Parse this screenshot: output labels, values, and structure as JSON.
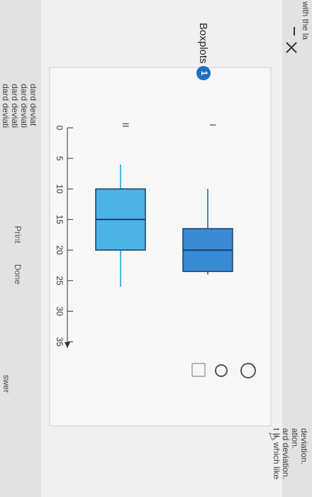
{
  "background_text": {
    "top": "with the la",
    "left": [
      "dard deviat",
      "dard deviati",
      "dard deviati",
      "dard deviati"
    ],
    "answer": "swer",
    "right": [
      "deviation.",
      "ation.",
      "ard deviation.",
      "t II, which like"
    ]
  },
  "dialog": {
    "step": "1",
    "title": "Boxplots",
    "buttons": [
      "Print",
      "Done"
    ]
  },
  "chart_data": {
    "type": "boxplot",
    "categories": [
      "I",
      "II"
    ],
    "colors": [
      "#3a8bd6",
      "#4bb3e8"
    ],
    "values": [
      {
        "min": 10,
        "q1": 16.5,
        "median": 20,
        "q3": 23.5,
        "max": 24
      },
      {
        "min": 6,
        "q1": 10,
        "median": 15,
        "q3": 20,
        "max": 26
      }
    ],
    "ylim": [
      0,
      36
    ],
    "yticks": [
      0,
      5,
      10,
      15,
      20,
      25,
      30,
      35
    ]
  }
}
